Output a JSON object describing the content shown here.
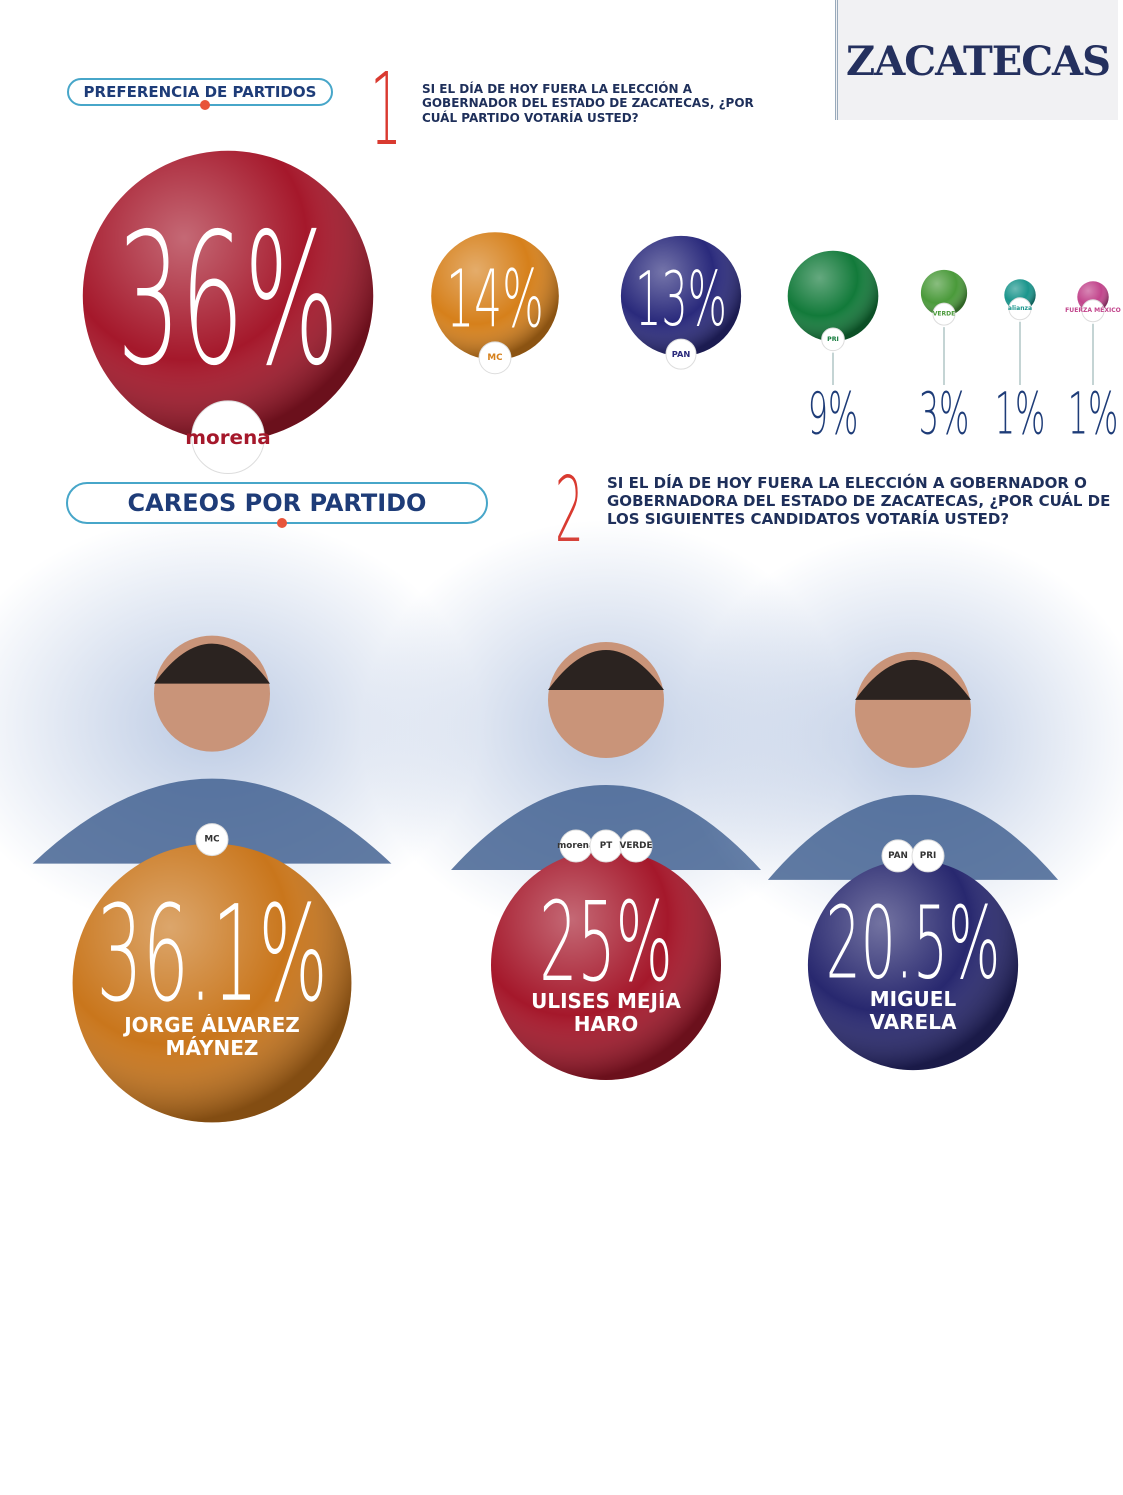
{
  "header": {
    "title": "ZACATECAS"
  },
  "chart_data": [
    {
      "type": "bubble",
      "section": "PREFERENCIA DE PARTIDOS",
      "number": 1,
      "question": "SI EL DÍA DE HOY FUERA LA ELECCIÓN A GOBERNADOR DEL ESTADO DE ZACATECAS, ¿POR CUÁL PARTIDO VOTARÍA USTED?",
      "categories": [
        "morena",
        "MC",
        "PAN",
        "PRI",
        "VERDE",
        "alianza",
        "FUERZA MÉXICO"
      ],
      "values": [
        36,
        14,
        13,
        9,
        3,
        1,
        1
      ],
      "value_labels": [
        "36%",
        "14%",
        "13%",
        "9%",
        "3%",
        "1%",
        "1%"
      ],
      "colors": [
        "#a5182b",
        "#d6801b",
        "#2a2a7c",
        "#127a3a",
        "#4a9a3a",
        "#1a958c",
        "#c2458c"
      ]
    },
    {
      "type": "bubble",
      "section": "CAREOS POR PARTIDO",
      "number": 2,
      "question": "SI EL DÍA DE HOY FUERA LA ELECCIÓN A GOBERNADOR O GOBERNADORA DEL ESTADO DE ZACATECAS, ¿POR CUÁL DE LOS SIGUIENTES CANDIDATOS VOTARÍA USTED?",
      "categories": [
        "JORGE ÁLVAREZ MÁYNEZ",
        "ULISES MEJÍA HARO",
        "MIGUEL VARELA"
      ],
      "values": [
        36.1,
        25,
        20.5
      ],
      "value_labels": [
        "36.1%",
        "25%",
        "20.5%"
      ],
      "colors": [
        "#c9761c",
        "#a5182b",
        "#28286f"
      ],
      "party_logos": [
        [
          "MC"
        ],
        [
          "morena",
          "PT",
          "VERDE"
        ],
        [
          "PAN",
          "PRI"
        ]
      ]
    }
  ]
}
